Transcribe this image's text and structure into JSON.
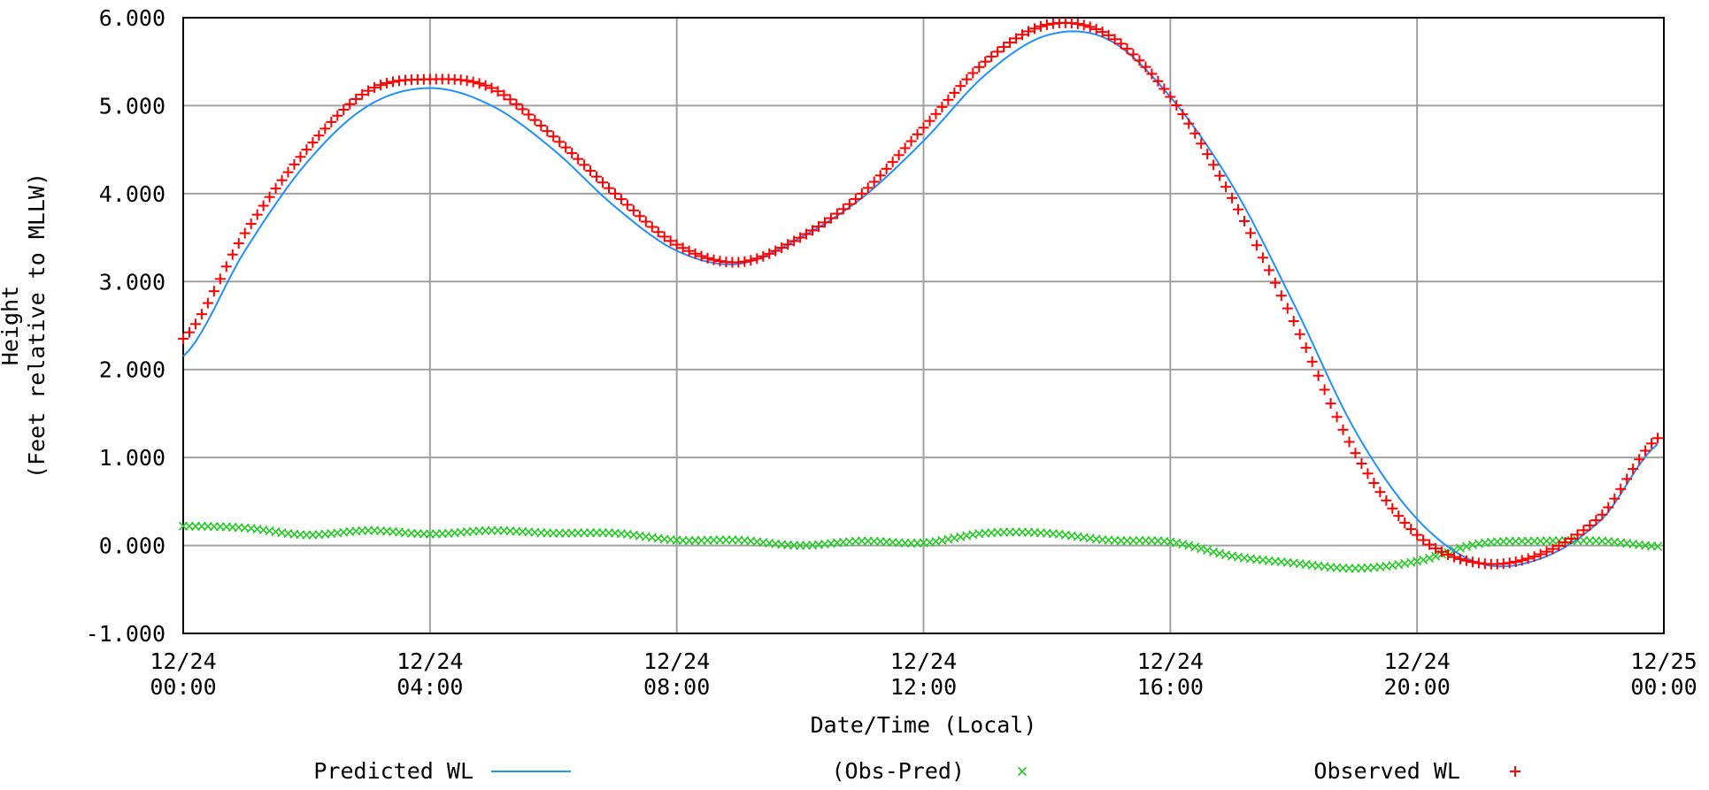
{
  "chart_data": {
    "type": "line",
    "title": "",
    "xlabel": "Date/Time (Local)",
    "ylabel_lines": [
      "Height",
      "(Feet relative to MLLW)"
    ],
    "ylim": [
      -1.0,
      6.0
    ],
    "xlim": [
      "12/24 00:00",
      "12/25 00:00"
    ],
    "y_ticks": [
      "-1.000",
      "0.000",
      "1.000",
      "2.000",
      "3.000",
      "4.000",
      "5.000",
      "6.000"
    ],
    "x_ticks": [
      {
        "date": "12/24",
        "time": "00:00"
      },
      {
        "date": "12/24",
        "time": "04:00"
      },
      {
        "date": "12/24",
        "time": "08:00"
      },
      {
        "date": "12/24",
        "time": "12:00"
      },
      {
        "date": "12/24",
        "time": "16:00"
      },
      {
        "date": "12/24",
        "time": "20:00"
      },
      {
        "date": "12/25",
        "time": "00:00"
      }
    ],
    "grid": true,
    "legend_position": "bottom",
    "series": [
      {
        "name": "Predicted WL",
        "marker": "line",
        "color": "#1e90ff",
        "x": [
          "12/24 00:00",
          "12/24 01:00",
          "12/24 02:00",
          "12/24 03:00",
          "12/24 04:00",
          "12/24 05:00",
          "12/24 06:00",
          "12/24 07:00",
          "12/24 08:00",
          "12/24 09:00",
          "12/24 10:00",
          "12/24 11:00",
          "12/24 12:00",
          "12/24 13:00",
          "12/24 14:00",
          "12/24 15:00",
          "12/24 16:00",
          "12/24 17:00",
          "12/24 18:00",
          "12/24 19:00",
          "12/24 20:00",
          "12/24 21:00",
          "12/24 22:00",
          "12/24 23:00",
          "12/24 23:54"
        ],
        "values": [
          2.15,
          3.35,
          4.35,
          5.0,
          5.2,
          5.0,
          4.5,
          3.85,
          3.35,
          3.2,
          3.5,
          3.95,
          4.6,
          5.35,
          5.8,
          5.75,
          5.1,
          4.1,
          2.75,
          1.3,
          0.3,
          -0.2,
          -0.15,
          0.3,
          1.15
        ]
      },
      {
        "name": "(Obs-Pred)",
        "marker": "x",
        "color": "#22cc22",
        "x": [
          "12/24 00:00",
          "12/24 01:00",
          "12/24 02:00",
          "12/24 03:00",
          "12/24 04:00",
          "12/24 05:00",
          "12/24 06:00",
          "12/24 07:00",
          "12/24 08:00",
          "12/24 09:00",
          "12/24 10:00",
          "12/24 11:00",
          "12/24 12:00",
          "12/24 13:00",
          "12/24 14:00",
          "12/24 15:00",
          "12/24 16:00",
          "12/24 17:00",
          "12/24 18:00",
          "12/24 19:00",
          "12/24 20:00",
          "12/24 21:00",
          "12/24 22:00",
          "12/24 23:00",
          "12/24 23:54"
        ],
        "values": [
          0.22,
          0.2,
          0.12,
          0.17,
          0.13,
          0.17,
          0.14,
          0.14,
          0.06,
          0.06,
          0.0,
          0.05,
          0.03,
          0.14,
          0.14,
          0.06,
          0.04,
          -0.12,
          -0.2,
          -0.26,
          -0.18,
          0.02,
          0.05,
          0.05,
          -0.01
        ]
      },
      {
        "name": "Observed WL",
        "marker": "+",
        "color": "#ff0000",
        "x": [
          "12/24 00:00",
          "12/24 01:00",
          "12/24 02:00",
          "12/24 03:00",
          "12/24 04:00",
          "12/24 05:00",
          "12/24 06:00",
          "12/24 07:00",
          "12/24 08:00",
          "12/24 09:00",
          "12/24 10:00",
          "12/24 11:00",
          "12/24 12:00",
          "12/24 13:00",
          "12/24 14:00",
          "12/24 15:00",
          "12/24 16:00",
          "12/24 17:00",
          "12/24 18:00",
          "12/24 19:00",
          "12/24 20:00",
          "12/24 21:00",
          "12/24 22:00",
          "12/24 23:00",
          "12/24 23:54"
        ],
        "values": [
          2.35,
          3.55,
          4.5,
          5.17,
          5.3,
          5.2,
          4.65,
          4.0,
          3.42,
          3.22,
          3.5,
          4.0,
          4.75,
          5.5,
          5.92,
          5.8,
          5.1,
          3.95,
          2.55,
          1.05,
          0.12,
          -0.2,
          -0.1,
          0.35,
          1.22
        ]
      }
    ]
  }
}
